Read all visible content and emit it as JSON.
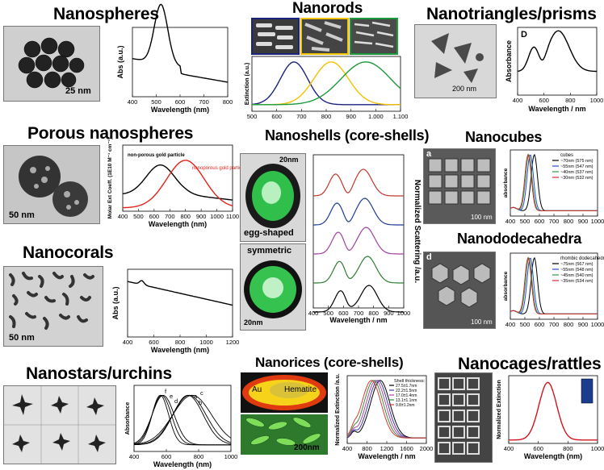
{
  "panels": {
    "nanospheres": {
      "title": "Nanospheres",
      "scale": "25 nm",
      "ylabel": "Abs (a.u.)",
      "xlabel": "Wavelength (nm)",
      "xticks": [
        "400",
        "500",
        "600",
        "700",
        "800"
      ]
    },
    "nanorods": {
      "title": "Nanorods",
      "ylabel": "Extinction (a.u.)",
      "xticks": [
        "500",
        "600",
        "700",
        "800",
        "900",
        "1.000",
        "1.100"
      ]
    },
    "nanotriangles": {
      "title": "Nanotriangles/prisms",
      "scale": "200 nm",
      "panel_letter": "D",
      "ylabel": "Absorbance",
      "xlabel": "Wavelength / nm",
      "xticks": [
        "400",
        "600",
        "800",
        "1000"
      ]
    },
    "porous": {
      "title": "Porous nanospheres",
      "scale": "50 nm",
      "ylabel": "Molar Ext Coeff. (1E10 M⁻¹ cm⁻¹)",
      "xlabel": "Wavelength (nm)",
      "label_black": "non-porous gold particle",
      "label_red": "nanoporous gold particle",
      "xticks": [
        "400",
        "500",
        "600",
        "700",
        "800",
        "900",
        "1000",
        "1100"
      ]
    },
    "nanoshells": {
      "title": "Nanoshells (core-shells)",
      "scale_top": "20nm",
      "scale_bottom": "20nm",
      "label_egg": "egg-shaped",
      "label_sym": "symmetric",
      "ylabel": "Normalized Scattering /a.u.",
      "xlabel": "Wavelength / nm",
      "xticks": [
        "400",
        "500",
        "600",
        "700",
        "800",
        "900",
        "1000"
      ]
    },
    "nanocubes": {
      "title": "Nanocubes",
      "panel_letter": "a",
      "scale": "100 nm",
      "ylabel": "absorbance",
      "legend_title": "cubes",
      "legend": [
        "~70nm (575 nm)",
        "~55nm (547 nm)",
        "~40nm (537 nm)",
        "~30nm (532 nm)"
      ],
      "xticks": [
        "400",
        "500",
        "600",
        "700",
        "800",
        "900",
        "1000"
      ]
    },
    "nanododecahedra": {
      "title": "Nanododecahedra",
      "panel_letter": "d",
      "scale": "100 nm",
      "ylabel": "absorbance",
      "legend_title": "rhombic dodecahedra",
      "legend": [
        "~75nm (567 nm)",
        "~55nm (548 nm)",
        "~45nm (540 nm)",
        "~35nm (534 nm)"
      ],
      "xticks": [
        "400",
        "500",
        "600",
        "700",
        "800",
        "900",
        "1000"
      ]
    },
    "nanocorals": {
      "title": "Nanocorals",
      "scale": "50 nm",
      "ylabel": "Abs (a.u.)",
      "xlabel": "Wavelength (nm)",
      "xticks": [
        "400",
        "600",
        "800",
        "1000",
        "1200"
      ]
    },
    "nanostars": {
      "title": "Nanostars/urchins",
      "ylabel": "Absorbance",
      "xlabel": "Wavelength (nm)",
      "curve_labels": [
        "f",
        "e",
        "d",
        "a",
        "c",
        "b"
      ],
      "xticks": [
        "400",
        "600",
        "800",
        "1000"
      ]
    },
    "nanorices": {
      "title": "Nanorices (core-shells)",
      "au": "Au",
      "hematite": "Hematite",
      "scale": "200nm",
      "ylabel": "Normalized Extinction /a.u.",
      "xlabel": "Wavelength / nm",
      "legend_title": "Shell thickness:",
      "legend": [
        "27.5±1.7nm",
        "22.2±1.5nm",
        "17.0±1.4nm",
        "13.1±1.1nm",
        "9.8±1.2nm"
      ],
      "xticks": [
        "400",
        "800",
        "1200",
        "1600",
        "2000"
      ]
    },
    "nanocages": {
      "title": "Nanocages/rattles",
      "ylabel": "Normalized Extinction",
      "xlabel": "Wavelength (nm)",
      "xticks": [
        "400",
        "600",
        "800",
        "1000"
      ]
    }
  },
  "colors": {
    "nanorods": [
      "#1a237e",
      "#f2c200",
      "#1a9a3a"
    ],
    "porous_red": "#e3241b",
    "cages_red": "#d0161c",
    "shells": [
      "#c0392b",
      "#1f3a93",
      "#a23fa0",
      "#2e7d32",
      "#000000"
    ],
    "cubes": [
      "#000000",
      "#1f4fd6",
      "#2a9d3a",
      "#d32f2f"
    ],
    "rices": [
      "#000000",
      "#3a3aa8",
      "#b040b0",
      "#3a8a3a",
      "#d23a3a"
    ]
  }
}
